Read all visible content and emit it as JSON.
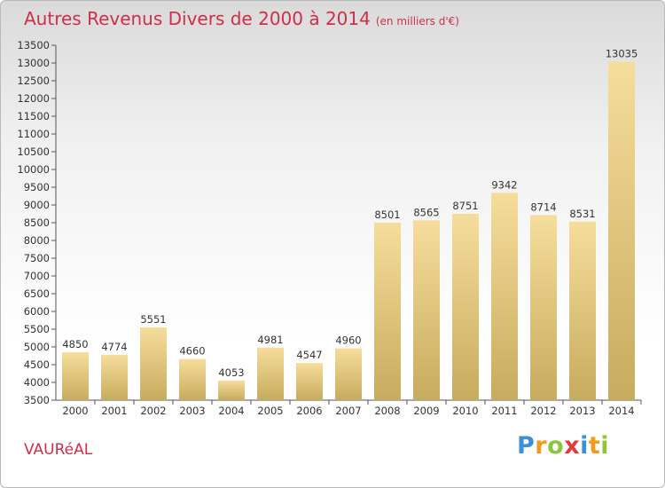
{
  "chart_data": {
    "type": "bar",
    "title": "Autres Revenus Divers de 2000 à 2014",
    "subtitle": "(en milliers d'€)",
    "categories": [
      "2000",
      "2001",
      "2002",
      "2003",
      "2004",
      "2005",
      "2006",
      "2007",
      "2008",
      "2009",
      "2010",
      "2011",
      "2012",
      "2013",
      "2014"
    ],
    "values": [
      4850,
      4774,
      5551,
      4660,
      4053,
      4981,
      4547,
      4960,
      8501,
      8565,
      8751,
      9342,
      8714,
      8531,
      13035
    ],
    "ylim": [
      3500,
      13500
    ],
    "ytick_step": 500,
    "grid": false,
    "legend": "none",
    "colors": {
      "bar_light": "#f6dd9c",
      "bar_dark": "#c7ab5e",
      "title": "#d22d4a"
    }
  },
  "footer": {
    "commune": "VAURéAL"
  },
  "logo": {
    "text": "Proxiti",
    "letters": [
      {
        "ch": "P",
        "color": "#3d8fd6"
      },
      {
        "ch": "r",
        "color": "#f29a1b"
      },
      {
        "ch": "o",
        "color": "#8cc63e"
      },
      {
        "ch": "x",
        "color": "#e23b3b"
      },
      {
        "ch": "i",
        "color": "#3d8fd6"
      },
      {
        "ch": "t",
        "color": "#f29a1b"
      },
      {
        "ch": "i",
        "color": "#8cc63e"
      }
    ]
  }
}
